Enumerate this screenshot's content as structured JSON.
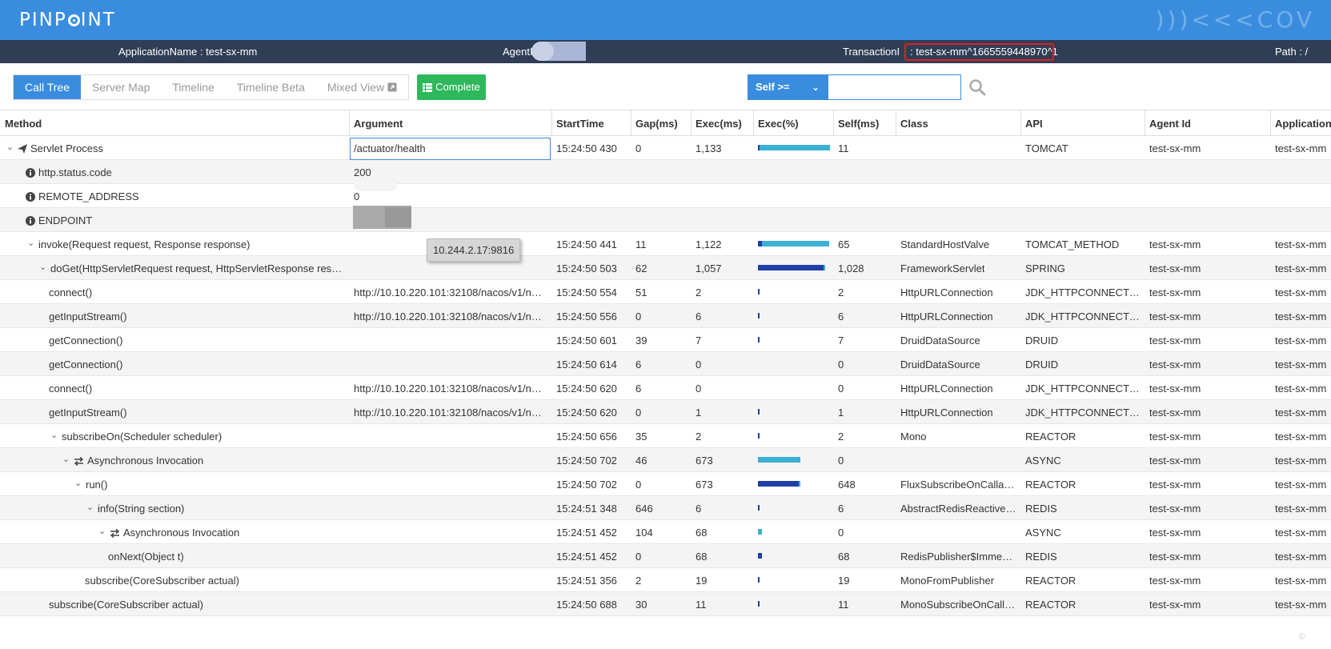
{
  "header": {
    "logo": "PINPOINT",
    "logo_parts": [
      "PINP",
      "INT"
    ],
    "watermark": ")))<<<COV"
  },
  "info": {
    "application_name": "ApplicationName : test-sx-mm",
    "agent_label": "AgentI",
    "transaction_label": "TransactionI",
    "transaction_id": ": test-sx-mm^1665559448970^1",
    "path_label": "Path : /"
  },
  "tabs": [
    "Call Tree",
    "Server Map",
    "Timeline",
    "Timeline Beta",
    "Mixed View"
  ],
  "complete_label": "Complete",
  "filter": {
    "selected": "Self >=",
    "value": ""
  },
  "columns": [
    "Method",
    "Argument",
    "StartTime",
    "Gap(ms)",
    "Exec(ms)",
    "Exec(%)",
    "Self(ms)",
    "Class",
    "API",
    "Agent Id",
    "Application"
  ],
  "rows": [
    {
      "method": "Servlet Process",
      "arg": "/actuator/health",
      "start": "15:24:50 430",
      "gap": "0",
      "exec": "1,133",
      "exec_pct": 100,
      "self_pct": 1,
      "self": "11",
      "cls": "",
      "api": "TOMCAT",
      "agent": "test-sx-mm",
      "app": "test-sx-mm"
    },
    {
      "method": "http.status.code",
      "arg": "200",
      "start": "",
      "gap": "",
      "exec": "",
      "exec_pct": null,
      "self_pct": null,
      "self": "",
      "cls": "",
      "api": "",
      "agent": "",
      "app": ""
    },
    {
      "method": "REMOTE_ADDRESS",
      "arg": "0",
      "start": "",
      "gap": "",
      "exec": "",
      "exec_pct": null,
      "self_pct": null,
      "self": "",
      "cls": "",
      "api": "",
      "agent": "",
      "app": ""
    },
    {
      "method": "ENDPOINT",
      "arg": "816",
      "start": "",
      "gap": "",
      "exec": "",
      "exec_pct": null,
      "self_pct": null,
      "self": "",
      "cls": "",
      "api": "",
      "agent": "",
      "app": ""
    },
    {
      "method": "invoke(Request request, Response response)",
      "arg": "",
      "start": "15:24:50 441",
      "gap": "11",
      "exec": "1,122",
      "exec_pct": 99,
      "self_pct": 6,
      "self": "65",
      "cls": "StandardHostValve",
      "api": "TOMCAT_METHOD",
      "agent": "test-sx-mm",
      "app": "test-sx-mm"
    },
    {
      "method": "doGet(HttpServletRequest request, HttpServletResponse respo...",
      "arg": "",
      "start": "15:24:50 503",
      "gap": "62",
      "exec": "1,057",
      "exec_pct": 93,
      "self_pct": 91,
      "self": "1,028",
      "cls": "FrameworkServlet",
      "api": "SPRING",
      "agent": "test-sx-mm",
      "app": "test-sx-mm"
    },
    {
      "method": "connect()",
      "arg": "http://10.10.220.101:32108/nacos/v1/ns/...",
      "start": "15:24:50 554",
      "gap": "51",
      "exec": "2",
      "exec_pct": 0.5,
      "self_pct": 0.5,
      "self": "2",
      "cls": "HttpURLConnection",
      "api": "JDK_HTTPCONNECTOR",
      "agent": "test-sx-mm",
      "app": "test-sx-mm"
    },
    {
      "method": "getInputStream()",
      "arg": "http://10.10.220.101:32108/nacos/v1/ns/...",
      "start": "15:24:50 556",
      "gap": "0",
      "exec": "6",
      "exec_pct": 0.5,
      "self_pct": 0.5,
      "self": "6",
      "cls": "HttpURLConnection",
      "api": "JDK_HTTPCONNECTOR",
      "agent": "test-sx-mm",
      "app": "test-sx-mm"
    },
    {
      "method": "getConnection()",
      "arg": "",
      "start": "15:24:50 601",
      "gap": "39",
      "exec": "7",
      "exec_pct": 0.6,
      "self_pct": 0.6,
      "self": "7",
      "cls": "DruidDataSource",
      "api": "DRUID",
      "agent": "test-sx-mm",
      "app": "test-sx-mm"
    },
    {
      "method": "getConnection()",
      "arg": "",
      "start": "15:24:50 614",
      "gap": "6",
      "exec": "0",
      "exec_pct": null,
      "self_pct": null,
      "self": "0",
      "cls": "DruidDataSource",
      "api": "DRUID",
      "agent": "test-sx-mm",
      "app": "test-sx-mm"
    },
    {
      "method": "connect()",
      "arg": "http://10.10.220.101:32108/nacos/v1/ns/...",
      "start": "15:24:50 620",
      "gap": "6",
      "exec": "0",
      "exec_pct": null,
      "self_pct": null,
      "self": "0",
      "cls": "HttpURLConnection",
      "api": "JDK_HTTPCONNECTOR",
      "agent": "test-sx-mm",
      "app": "test-sx-mm"
    },
    {
      "method": "getInputStream()",
      "arg": "http://10.10.220.101:32108/nacos/v1/ns/...",
      "start": "15:24:50 620",
      "gap": "0",
      "exec": "1",
      "exec_pct": 0.5,
      "self_pct": 0.5,
      "self": "1",
      "cls": "HttpURLConnection",
      "api": "JDK_HTTPCONNECTOR",
      "agent": "test-sx-mm",
      "app": "test-sx-mm"
    },
    {
      "method": "subscribeOn(Scheduler scheduler)",
      "arg": "",
      "start": "15:24:50 656",
      "gap": "35",
      "exec": "2",
      "exec_pct": 0.5,
      "self_pct": 0.5,
      "self": "2",
      "cls": "Mono",
      "api": "REACTOR",
      "agent": "test-sx-mm",
      "app": "test-sx-mm"
    },
    {
      "method": "Asynchronous Invocation",
      "arg": "",
      "start": "15:24:50 702",
      "gap": "46",
      "exec": "673",
      "exec_pct": 59,
      "self_pct": null,
      "self": "0",
      "cls": "",
      "api": "ASYNC",
      "agent": "test-sx-mm",
      "app": "test-sx-mm"
    },
    {
      "method": "run()",
      "arg": "",
      "start": "15:24:50 702",
      "gap": "0",
      "exec": "673",
      "exec_pct": 59,
      "self_pct": 57,
      "self": "648",
      "cls": "FluxSubscribeOnCallabl...",
      "api": "REACTOR",
      "agent": "test-sx-mm",
      "app": "test-sx-mm"
    },
    {
      "method": "info(String section)",
      "arg": "",
      "start": "15:24:51 348",
      "gap": "646",
      "exec": "6",
      "exec_pct": 0.5,
      "self_pct": 0.5,
      "self": "6",
      "cls": "AbstractRedisReactiveC...",
      "api": "REDIS",
      "agent": "test-sx-mm",
      "app": "test-sx-mm"
    },
    {
      "method": "Asynchronous Invocation",
      "arg": "",
      "start": "15:24:51 452",
      "gap": "104",
      "exec": "68",
      "exec_pct": 6,
      "self_pct": null,
      "self": "0",
      "cls": "",
      "api": "ASYNC",
      "agent": "test-sx-mm",
      "app": "test-sx-mm"
    },
    {
      "method": "onNext(Object t)",
      "arg": "",
      "start": "15:24:51 452",
      "gap": "0",
      "exec": "68",
      "exec_pct": 6,
      "self_pct": 6,
      "self": "68",
      "cls": "RedisPublisher$Immedi...",
      "api": "REDIS",
      "agent": "test-sx-mm",
      "app": "test-sx-mm"
    },
    {
      "method": "subscribe(CoreSubscriber actual)",
      "arg": "",
      "start": "15:24:51 356",
      "gap": "2",
      "exec": "19",
      "exec_pct": 2,
      "self_pct": 2,
      "self": "19",
      "cls": "MonoFromPublisher",
      "api": "REACTOR",
      "agent": "test-sx-mm",
      "app": "test-sx-mm"
    },
    {
      "method": "subscribe(CoreSubscriber actual)",
      "arg": "",
      "start": "15:24:50 688",
      "gap": "30",
      "exec": "11",
      "exec_pct": 1,
      "self_pct": 1,
      "self": "11",
      "cls": "MonoSubscribeOnCalla...",
      "api": "REACTOR",
      "agent": "test-sx-mm",
      "app": "test-sx-mm"
    }
  ],
  "tooltip": "10.244.2.17:9816",
  "footer_watermark": "©      "
}
